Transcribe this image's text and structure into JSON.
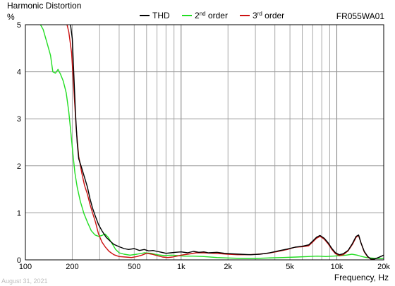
{
  "chart_data": {
    "type": "line",
    "title": "Harmonic Distortion",
    "model": "FR055WA01",
    "ylabel": "%",
    "xlabel": "Frequency, Hz",
    "date": "August 31, 2021",
    "x_scale": "log",
    "xlim": [
      100,
      20000
    ],
    "ylim": [
      0,
      5
    ],
    "grid": true,
    "legend_position": "top",
    "x_ticks": [
      {
        "value": 100,
        "label": "100"
      },
      {
        "value": 200,
        "label": "200"
      },
      {
        "value": 500,
        "label": "500"
      },
      {
        "value": 1000,
        "label": "1k"
      },
      {
        "value": 2000,
        "label": "2k"
      },
      {
        "value": 5000,
        "label": "5k"
      },
      {
        "value": 10000,
        "label": "10k"
      },
      {
        "value": 20000,
        "label": "20k"
      }
    ],
    "y_ticks": [
      {
        "value": 0,
        "label": "0"
      },
      {
        "value": 1,
        "label": "1"
      },
      {
        "value": 2,
        "label": "2"
      },
      {
        "value": 3,
        "label": "3"
      },
      {
        "value": 4,
        "label": "4"
      },
      {
        "value": 5,
        "label": "5"
      }
    ],
    "series": [
      {
        "name": "THD",
        "color": "#000000",
        "points": [
          [
            195,
            5.0
          ],
          [
            200,
            4.7
          ],
          [
            205,
            3.9
          ],
          [
            210,
            3.1
          ],
          [
            215,
            2.5
          ],
          [
            220,
            2.15
          ],
          [
            230,
            1.95
          ],
          [
            240,
            1.75
          ],
          [
            250,
            1.55
          ],
          [
            260,
            1.3
          ],
          [
            270,
            1.1
          ],
          [
            280,
            0.95
          ],
          [
            295,
            0.75
          ],
          [
            310,
            0.62
          ],
          [
            330,
            0.48
          ],
          [
            350,
            0.4
          ],
          [
            370,
            0.33
          ],
          [
            400,
            0.28
          ],
          [
            430,
            0.24
          ],
          [
            460,
            0.22
          ],
          [
            500,
            0.24
          ],
          [
            540,
            0.2
          ],
          [
            580,
            0.22
          ],
          [
            620,
            0.19
          ],
          [
            660,
            0.2
          ],
          [
            700,
            0.18
          ],
          [
            750,
            0.16
          ],
          [
            800,
            0.14
          ],
          [
            860,
            0.15
          ],
          [
            920,
            0.16
          ],
          [
            1000,
            0.17
          ],
          [
            1100,
            0.15
          ],
          [
            1200,
            0.18
          ],
          [
            1300,
            0.16
          ],
          [
            1400,
            0.17
          ],
          [
            1500,
            0.15
          ],
          [
            1700,
            0.16
          ],
          [
            1900,
            0.14
          ],
          [
            2100,
            0.13
          ],
          [
            2400,
            0.12
          ],
          [
            2800,
            0.11
          ],
          [
            3200,
            0.12
          ],
          [
            3700,
            0.15
          ],
          [
            4200,
            0.19
          ],
          [
            4800,
            0.23
          ],
          [
            5400,
            0.27
          ],
          [
            6000,
            0.29
          ],
          [
            6600,
            0.32
          ],
          [
            7000,
            0.4
          ],
          [
            7400,
            0.48
          ],
          [
            7800,
            0.52
          ],
          [
            8300,
            0.46
          ],
          [
            8800,
            0.36
          ],
          [
            9300,
            0.24
          ],
          [
            9800,
            0.15
          ],
          [
            10400,
            0.11
          ],
          [
            11000,
            0.13
          ],
          [
            11800,
            0.2
          ],
          [
            12600,
            0.35
          ],
          [
            13300,
            0.5
          ],
          [
            13800,
            0.53
          ],
          [
            14300,
            0.36
          ],
          [
            15000,
            0.18
          ],
          [
            15800,
            0.07
          ],
          [
            16500,
            0.02
          ],
          [
            17500,
            0.02
          ],
          [
            18500,
            0.05
          ],
          [
            20000,
            0.1
          ]
        ]
      },
      {
        "name": "2nd order",
        "color": "#22dd22",
        "points": [
          [
            125,
            5.0
          ],
          [
            130,
            4.9
          ],
          [
            138,
            4.6
          ],
          [
            145,
            4.35
          ],
          [
            150,
            4.0
          ],
          [
            156,
            3.97
          ],
          [
            162,
            4.05
          ],
          [
            168,
            3.95
          ],
          [
            175,
            3.8
          ],
          [
            183,
            3.55
          ],
          [
            190,
            3.15
          ],
          [
            196,
            2.7
          ],
          [
            202,
            2.25
          ],
          [
            208,
            1.85
          ],
          [
            215,
            1.55
          ],
          [
            225,
            1.25
          ],
          [
            238,
            0.98
          ],
          [
            252,
            0.78
          ],
          [
            265,
            0.62
          ],
          [
            280,
            0.53
          ],
          [
            295,
            0.5
          ],
          [
            310,
            0.52
          ],
          [
            325,
            0.55
          ],
          [
            340,
            0.48
          ],
          [
            360,
            0.35
          ],
          [
            380,
            0.22
          ],
          [
            400,
            0.15
          ],
          [
            430,
            0.12
          ],
          [
            470,
            0.1
          ],
          [
            520,
            0.12
          ],
          [
            580,
            0.15
          ],
          [
            640,
            0.14
          ],
          [
            700,
            0.11
          ],
          [
            780,
            0.09
          ],
          [
            870,
            0.1
          ],
          [
            950,
            0.09
          ],
          [
            1050,
            0.08
          ],
          [
            1200,
            0.08
          ],
          [
            1400,
            0.07
          ],
          [
            1700,
            0.05
          ],
          [
            2000,
            0.04
          ],
          [
            2500,
            0.03
          ],
          [
            3000,
            0.03
          ],
          [
            3600,
            0.04
          ],
          [
            4500,
            0.05
          ],
          [
            5500,
            0.06
          ],
          [
            6500,
            0.07
          ],
          [
            7500,
            0.08
          ],
          [
            8500,
            0.07
          ],
          [
            9500,
            0.08
          ],
          [
            10500,
            0.09
          ],
          [
            11500,
            0.1
          ],
          [
            12500,
            0.12
          ],
          [
            13500,
            0.1
          ],
          [
            14500,
            0.07
          ],
          [
            15500,
            0.05
          ],
          [
            16500,
            0.04
          ],
          [
            18000,
            0.03
          ],
          [
            20000,
            0.03
          ]
        ]
      },
      {
        "name": "3rd order",
        "color": "#cc1111",
        "points": [
          [
            185,
            5.0
          ],
          [
            190,
            4.85
          ],
          [
            198,
            4.4
          ],
          [
            205,
            3.6
          ],
          [
            212,
            2.8
          ],
          [
            220,
            2.2
          ],
          [
            230,
            1.85
          ],
          [
            240,
            1.58
          ],
          [
            250,
            1.4
          ],
          [
            260,
            1.18
          ],
          [
            270,
            1.0
          ],
          [
            282,
            0.8
          ],
          [
            295,
            0.55
          ],
          [
            310,
            0.38
          ],
          [
            325,
            0.28
          ],
          [
            345,
            0.18
          ],
          [
            370,
            0.11
          ],
          [
            400,
            0.07
          ],
          [
            440,
            0.06
          ],
          [
            480,
            0.05
          ],
          [
            520,
            0.07
          ],
          [
            560,
            0.1
          ],
          [
            600,
            0.14
          ],
          [
            650,
            0.12
          ],
          [
            700,
            0.09
          ],
          [
            760,
            0.06
          ],
          [
            820,
            0.05
          ],
          [
            880,
            0.06
          ],
          [
            940,
            0.08
          ],
          [
            1000,
            0.1
          ],
          [
            1100,
            0.12
          ],
          [
            1250,
            0.15
          ],
          [
            1400,
            0.15
          ],
          [
            1600,
            0.14
          ],
          [
            1800,
            0.13
          ],
          [
            2000,
            0.12
          ],
          [
            2300,
            0.11
          ],
          [
            2700,
            0.11
          ],
          [
            3100,
            0.12
          ],
          [
            3600,
            0.14
          ],
          [
            4200,
            0.18
          ],
          [
            4800,
            0.22
          ],
          [
            5400,
            0.27
          ],
          [
            6000,
            0.28
          ],
          [
            6600,
            0.3
          ],
          [
            7000,
            0.38
          ],
          [
            7400,
            0.46
          ],
          [
            7800,
            0.5
          ],
          [
            8300,
            0.44
          ],
          [
            8800,
            0.34
          ],
          [
            9300,
            0.22
          ],
          [
            9800,
            0.13
          ],
          [
            10400,
            0.09
          ],
          [
            11000,
            0.11
          ],
          [
            11800,
            0.19
          ],
          [
            12600,
            0.33
          ],
          [
            13300,
            0.48
          ],
          [
            13800,
            0.52
          ],
          [
            14300,
            0.36
          ],
          [
            15000,
            0.17
          ],
          [
            15800,
            0.06
          ],
          [
            16500,
            0.02
          ],
          [
            17500,
            0.01
          ]
        ]
      }
    ]
  }
}
